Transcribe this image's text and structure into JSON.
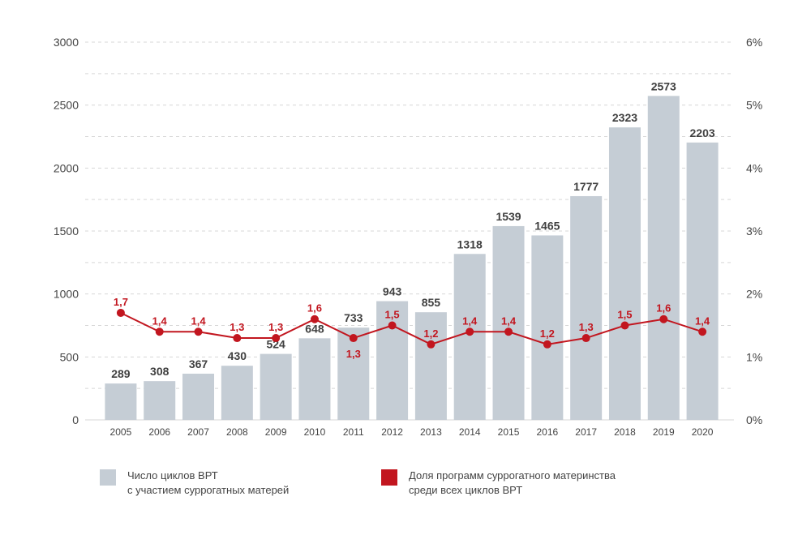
{
  "chart_data": {
    "type": "bar",
    "categories": [
      "2005",
      "2006",
      "2007",
      "2008",
      "2009",
      "2010",
      "2011",
      "2012",
      "2013",
      "2014",
      "2015",
      "2016",
      "2017",
      "2018",
      "2019",
      "2020"
    ],
    "series": [
      {
        "name": "Число циклов ВРТ с участием суррогатных матерей",
        "type": "bar",
        "axis": "left",
        "values": [
          289,
          308,
          367,
          430,
          524,
          648,
          733,
          943,
          855,
          1318,
          1539,
          1465,
          1777,
          2323,
          2573,
          2203
        ],
        "labels": [
          "289",
          "308",
          "367",
          "430",
          "524",
          "648",
          "733",
          "943",
          "855",
          "1318",
          "1539",
          "1465",
          "1777",
          "2323",
          "2573",
          "2203"
        ]
      },
      {
        "name": "Доля программ суррогатного материнства среди всех циклов ВРТ",
        "type": "line",
        "axis": "right",
        "values": [
          1.7,
          1.4,
          1.4,
          1.3,
          1.3,
          1.6,
          1.3,
          1.5,
          1.2,
          1.4,
          1.4,
          1.2,
          1.3,
          1.5,
          1.6,
          1.4
        ],
        "labels": [
          "1,7",
          "1,4",
          "1,4",
          "1,3",
          "1,3",
          "1,6",
          "1,3",
          "1,5",
          "1,2",
          "1,4",
          "1,4",
          "1,2",
          "1,3",
          "1,5",
          "1,6",
          "1,4"
        ]
      }
    ],
    "ylim": [
      0,
      3000
    ],
    "yticks": [
      "0",
      "500",
      "1000",
      "1500",
      "2000",
      "2500",
      "3000"
    ],
    "y2lim": [
      0,
      6
    ],
    "y2ticks": [
      "0%",
      "1%",
      "2%",
      "3%",
      "4%",
      "5%",
      "6%"
    ],
    "grid": true,
    "legend_position": "bottom",
    "colors": {
      "bar": "#c5cdd5",
      "line": "#c2161f",
      "bar_label": "#404040",
      "axis_text": "#444444",
      "grid": "#d7d7d7"
    }
  },
  "legend": {
    "bar_line1": "Число циклов ВРТ",
    "bar_line2": "с участием суррогатных матерей",
    "line_line1": "Доля программ суррогатного материнства",
    "line_line2": "среди всех циклов ВРТ"
  }
}
